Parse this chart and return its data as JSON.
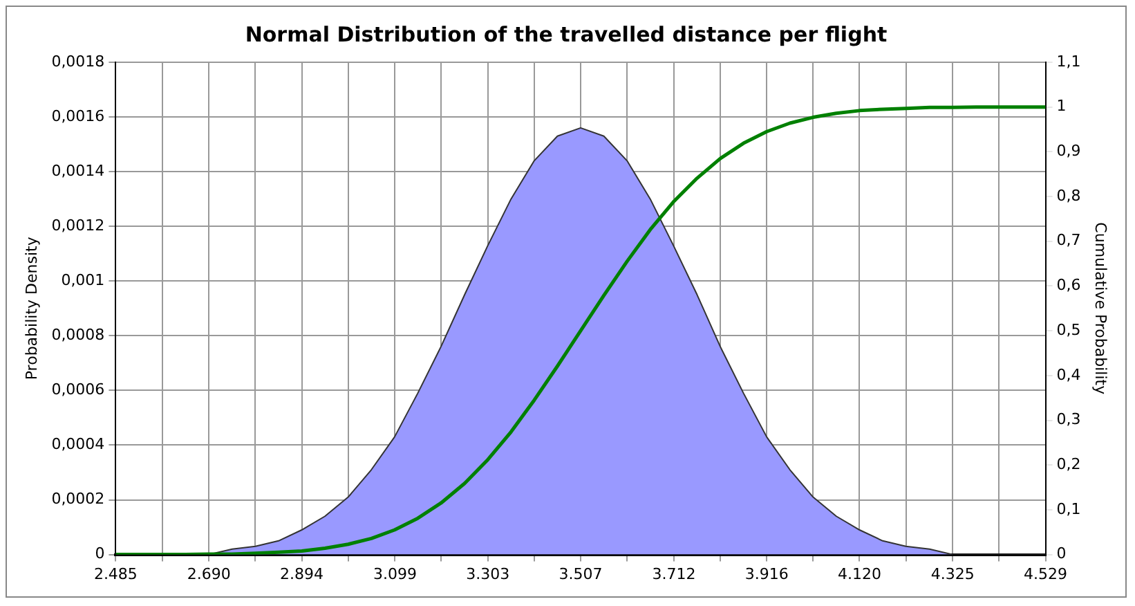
{
  "chart_data": {
    "type": "area",
    "title": "Normal Distribution of the travelled distance per flight",
    "ylabel": "Probability Density",
    "y2label": "Cumulative Probability",
    "x": [
      2485,
      2536,
      2587,
      2638,
      2689,
      2741,
      2792,
      2843,
      2894,
      2945,
      2996,
      3047,
      3098,
      3149,
      3200,
      3252,
      3303,
      3354,
      3405,
      3456,
      3507,
      3558,
      3609,
      3660,
      3711,
      3763,
      3814,
      3865,
      3916,
      3967,
      4018,
      4069,
      4120,
      4171,
      4222,
      4274,
      4325,
      4376,
      4427,
      4478,
      4529
    ],
    "series": [
      {
        "color": "#9999ff",
        "values": [
          0,
          0,
          0,
          0,
          0,
          2e-05,
          3e-05,
          5e-05,
          9e-05,
          0.00014,
          0.00021,
          0.00031,
          0.00043,
          0.00059,
          0.00076,
          0.00095,
          0.00113,
          0.0013,
          0.00144,
          0.00153,
          0.00156,
          0.00153,
          0.00144,
          0.0013,
          0.00113,
          0.00095,
          0.00076,
          0.00059,
          0.00043,
          0.00031,
          0.00021,
          0.00014,
          9e-05,
          5e-05,
          3e-05,
          2e-05,
          0,
          0,
          0,
          0,
          0
        ]
      },
      {
        "type": "line",
        "axis": "y2",
        "color": "#008000",
        "values": [
          0,
          0,
          0,
          0,
          0.001,
          0.001,
          0.003,
          0.005,
          0.008,
          0.014,
          0.023,
          0.036,
          0.055,
          0.081,
          0.115,
          0.159,
          0.212,
          0.274,
          0.345,
          0.421,
          0.5,
          0.579,
          0.655,
          0.726,
          0.788,
          0.841,
          0.885,
          0.919,
          0.945,
          0.964,
          0.977,
          0.986,
          0.992,
          0.995,
          0.997,
          0.999,
          0.999,
          1,
          1,
          1,
          1
        ]
      }
    ],
    "xlim": [
      2485,
      4529
    ],
    "xticks": [
      {
        "value": 2485,
        "label": "2.485"
      },
      {
        "value": 2587,
        "label": null
      },
      {
        "value": 2690,
        "label": "2.690"
      },
      {
        "value": 2792,
        "label": null
      },
      {
        "value": 2894,
        "label": "2.894"
      },
      {
        "value": 2996,
        "label": null
      },
      {
        "value": 3099,
        "label": "3.099"
      },
      {
        "value": 3200,
        "label": null
      },
      {
        "value": 3303,
        "label": "3.303"
      },
      {
        "value": 3405,
        "label": null
      },
      {
        "value": 3507,
        "label": "3.507"
      },
      {
        "value": 3609,
        "label": null
      },
      {
        "value": 3712,
        "label": "3.712"
      },
      {
        "value": 3814,
        "label": null
      },
      {
        "value": 3916,
        "label": "3.916"
      },
      {
        "value": 4018,
        "label": null
      },
      {
        "value": 4120,
        "label": "4.120"
      },
      {
        "value": 4222,
        "label": null
      },
      {
        "value": 4325,
        "label": "4.325"
      },
      {
        "value": 4427,
        "label": null
      },
      {
        "value": 4529,
        "label": "4.529"
      }
    ],
    "ylim": [
      0,
      0.0018
    ],
    "yticks": [
      {
        "value": 0,
        "label": "0"
      },
      {
        "value": 0.0002,
        "label": "0,0002"
      },
      {
        "value": 0.0004,
        "label": "0,0004"
      },
      {
        "value": 0.0006,
        "label": "0,0006"
      },
      {
        "value": 0.0008,
        "label": "0,0008"
      },
      {
        "value": 0.001,
        "label": "0,001"
      },
      {
        "value": 0.0012,
        "label": "0,0012"
      },
      {
        "value": 0.0014,
        "label": "0,0014"
      },
      {
        "value": 0.0016,
        "label": "0,0016"
      },
      {
        "value": 0.0018,
        "label": "0,0018"
      }
    ],
    "y2lim": [
      0,
      1.1
    ],
    "y2ticks": [
      {
        "value": 0,
        "label": "0"
      },
      {
        "value": 0.1,
        "label": "0,1"
      },
      {
        "value": 0.2,
        "label": "0,2"
      },
      {
        "value": 0.3,
        "label": "0,3"
      },
      {
        "value": 0.4,
        "label": "0,4"
      },
      {
        "value": 0.5,
        "label": "0,5"
      },
      {
        "value": 0.6,
        "label": "0,6"
      },
      {
        "value": 0.7,
        "label": "0,7"
      },
      {
        "value": 0.8,
        "label": "0,8"
      },
      {
        "value": 0.9,
        "label": "0,9"
      },
      {
        "value": 1,
        "label": "1"
      },
      {
        "value": 1.1,
        "label": "1,1"
      }
    ],
    "grid": true,
    "legend": false,
    "marker": "none",
    "line_style": "solid"
  }
}
